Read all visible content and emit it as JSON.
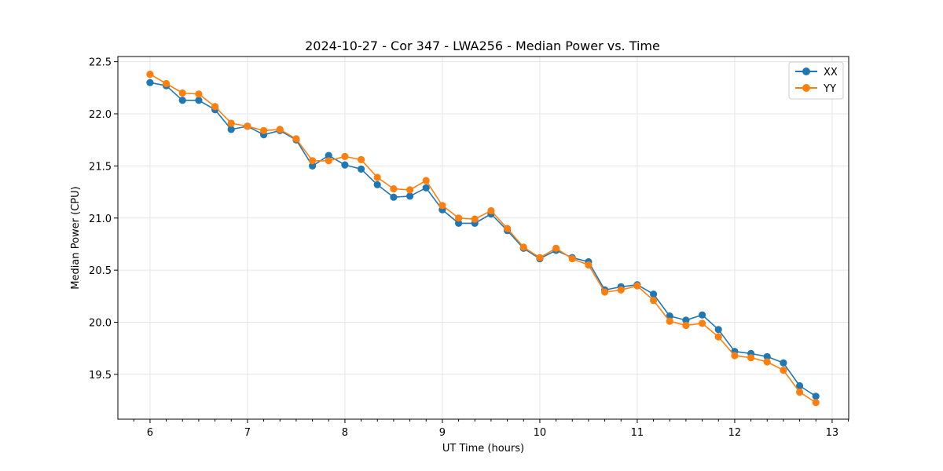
{
  "chart_data": {
    "type": "line",
    "title": "2024-10-27 - Cor 347 - LWA256 - Median Power vs. Time",
    "xlabel": "UT Time (hours)",
    "ylabel": "Median Power (CPU)",
    "xlim": [
      5.67,
      13.17
    ],
    "ylim": [
      19.07,
      22.55
    ],
    "xticks": [
      6,
      7,
      8,
      9,
      10,
      11,
      12,
      13
    ],
    "xtick_labels": [
      "6",
      "7",
      "8",
      "9",
      "10",
      "11",
      "12",
      "13"
    ],
    "yticks": [
      19.5,
      20.0,
      20.5,
      21.0,
      21.5,
      22.0,
      22.5
    ],
    "ytick_labels": [
      "19.5",
      "20.0",
      "20.5",
      "21.0",
      "21.5",
      "22.0",
      "22.5"
    ],
    "grid": true,
    "legend_position": "top-right",
    "x": [
      6.0,
      6.1667,
      6.3333,
      6.5,
      6.6667,
      6.8333,
      7.0,
      7.1667,
      7.3333,
      7.5,
      7.6667,
      7.8333,
      8.0,
      8.1667,
      8.3333,
      8.5,
      8.6667,
      8.8333,
      9.0,
      9.1667,
      9.3333,
      9.5,
      9.6667,
      9.8333,
      10.0,
      10.1667,
      10.3333,
      10.5,
      10.6667,
      10.8333,
      11.0,
      11.1667,
      11.3333,
      11.5,
      11.6667,
      11.8333,
      12.0,
      12.1667,
      12.3333,
      12.5,
      12.6667,
      12.8333
    ],
    "series": [
      {
        "name": "XX",
        "color": "#1f77b4",
        "values": [
          22.3,
          22.27,
          22.13,
          22.13,
          22.04,
          21.85,
          21.88,
          21.8,
          21.84,
          21.75,
          21.5,
          21.6,
          21.51,
          21.47,
          21.32,
          21.2,
          21.21,
          21.29,
          21.08,
          20.95,
          20.95,
          21.04,
          20.88,
          20.71,
          20.61,
          20.69,
          20.62,
          20.58,
          20.31,
          20.34,
          20.36,
          20.27,
          20.06,
          20.02,
          20.07,
          19.93,
          19.72,
          19.7,
          19.67,
          19.61,
          19.39,
          19.29
        ]
      },
      {
        "name": "YY",
        "color": "#ff7f0e",
        "values": [
          22.38,
          22.29,
          22.2,
          22.19,
          22.07,
          21.91,
          21.88,
          21.84,
          21.85,
          21.76,
          21.55,
          21.55,
          21.59,
          21.56,
          21.39,
          21.28,
          21.27,
          21.36,
          21.12,
          21.0,
          20.99,
          21.07,
          20.9,
          20.72,
          20.62,
          20.71,
          20.61,
          20.55,
          20.29,
          20.31,
          20.35,
          20.21,
          20.01,
          19.97,
          19.99,
          19.86,
          19.68,
          19.66,
          19.62,
          19.54,
          19.33,
          19.23
        ]
      }
    ]
  }
}
